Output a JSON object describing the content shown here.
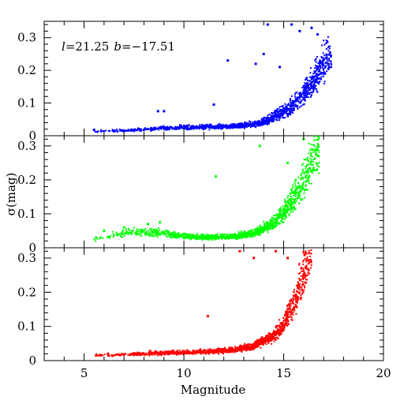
{
  "chart_data": {
    "type": "scatter",
    "xlabel": "Magnitude",
    "ylabel": "σ(mag)",
    "xlim": [
      3,
      20
    ],
    "x_ticks": [
      5,
      10,
      15,
      20
    ],
    "shared_x": true,
    "annotation": {
      "l_symbol": "l",
      "l_value": "=21.25",
      "b_symbol": "b",
      "b_value": "=−17.51"
    },
    "panels": [
      {
        "name": "blue",
        "color": "#0000ff",
        "ylim": [
          0,
          0.35
        ],
        "y_ticks": [
          0,
          0.1,
          0.2,
          0.3
        ],
        "y_tick_labels": [
          "0",
          "0.1",
          "0.2",
          "0.3"
        ],
        "profile": [
          [
            5.5,
            0.013
          ],
          [
            7,
            0.015
          ],
          [
            8,
            0.018
          ],
          [
            9,
            0.022
          ],
          [
            10,
            0.024
          ],
          [
            11,
            0.025
          ],
          [
            12,
            0.026
          ],
          [
            13,
            0.03
          ],
          [
            14,
            0.04
          ],
          [
            15,
            0.07
          ],
          [
            15.5,
            0.09
          ],
          [
            16,
            0.12
          ],
          [
            16.5,
            0.16
          ],
          [
            17,
            0.21
          ],
          [
            17.3,
            0.24
          ]
        ],
        "mag_max": 17.4,
        "outliers": [
          [
            5.5,
            0.018
          ],
          [
            8.7,
            0.075
          ],
          [
            9.0,
            0.075
          ],
          [
            11.5,
            0.095
          ],
          [
            12.2,
            0.23
          ],
          [
            13.6,
            0.22
          ],
          [
            14.0,
            0.25
          ],
          [
            14.2,
            0.34
          ],
          [
            14.8,
            0.21
          ],
          [
            15.4,
            0.34
          ],
          [
            15.8,
            0.32
          ],
          [
            16.4,
            0.33
          ],
          [
            16.7,
            0.31
          ]
        ]
      },
      {
        "name": "green",
        "color": "#00ff00",
        "ylim": [
          0,
          0.33
        ],
        "y_ticks": [
          0,
          0.1,
          0.2,
          0.3
        ],
        "y_tick_labels": [
          "0",
          "0.1",
          "0.2",
          "0.3"
        ],
        "profile": [
          [
            5.5,
            0.025
          ],
          [
            6.5,
            0.035
          ],
          [
            7.5,
            0.045
          ],
          [
            8.5,
            0.045
          ],
          [
            9.5,
            0.035
          ],
          [
            10.5,
            0.03
          ],
          [
            11.5,
            0.03
          ],
          [
            12.5,
            0.032
          ],
          [
            13.5,
            0.04
          ],
          [
            14.5,
            0.07
          ],
          [
            15,
            0.1
          ],
          [
            15.5,
            0.14
          ],
          [
            16,
            0.19
          ],
          [
            16.4,
            0.24
          ],
          [
            16.7,
            0.29
          ]
        ],
        "mag_max": 16.8,
        "outliers": [
          [
            5.6,
            0.03
          ],
          [
            6.0,
            0.05
          ],
          [
            7.0,
            0.06
          ],
          [
            8.2,
            0.07
          ],
          [
            8.8,
            0.075
          ],
          [
            11.6,
            0.21
          ],
          [
            13.8,
            0.3
          ],
          [
            15.2,
            0.25
          ],
          [
            16.0,
            0.32
          ]
        ]
      },
      {
        "name": "red",
        "color": "#ff0000",
        "ylim": [
          0,
          0.33
        ],
        "y_ticks": [
          0,
          0.1,
          0.2,
          0.3
        ],
        "y_tick_labels": [
          "0",
          "0.1",
          "0.2",
          "0.3"
        ],
        "profile": [
          [
            5.5,
            0.014
          ],
          [
            6.5,
            0.016
          ],
          [
            7.5,
            0.018
          ],
          [
            8.5,
            0.02
          ],
          [
            9.5,
            0.022
          ],
          [
            10.5,
            0.024
          ],
          [
            11.5,
            0.025
          ],
          [
            12.5,
            0.03
          ],
          [
            13.5,
            0.04
          ],
          [
            14.5,
            0.07
          ],
          [
            15,
            0.1
          ],
          [
            15.5,
            0.16
          ],
          [
            15.8,
            0.21
          ],
          [
            16.1,
            0.27
          ],
          [
            16.3,
            0.32
          ]
        ],
        "mag_max": 16.4,
        "outliers": [
          [
            5.6,
            0.015
          ],
          [
            6.2,
            0.02
          ],
          [
            8.3,
            0.028
          ],
          [
            11.2,
            0.13
          ],
          [
            12.8,
            0.32
          ],
          [
            13.5,
            0.3
          ],
          [
            14.6,
            0.32
          ],
          [
            15.2,
            0.3
          ]
        ]
      }
    ]
  }
}
